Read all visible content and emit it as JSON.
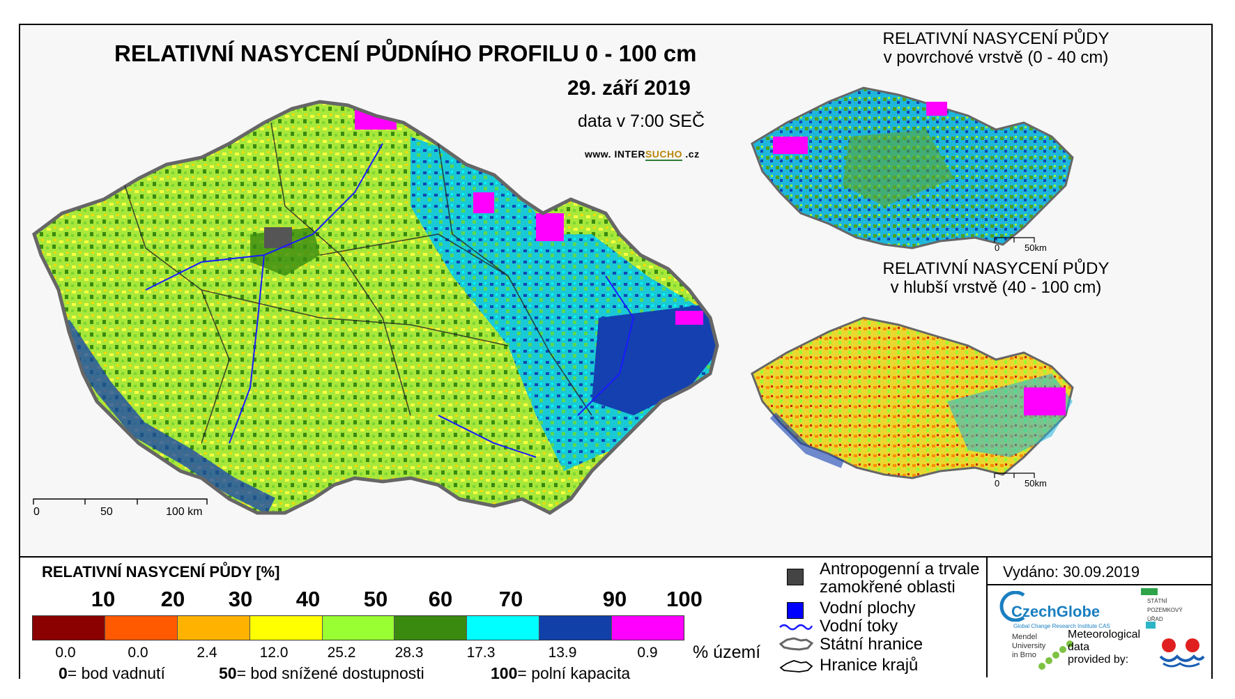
{
  "title": "RELATIVNÍ NASYCENÍ PŮDNÍHO PROFILU 0 - 100 cm",
  "date": "29. září 2019",
  "time_note": "data v 7:00 SEČ",
  "website": {
    "prefix": "www. ",
    "mid1": "INTER",
    "mid2": "SUCHO",
    "suffix": " .cz"
  },
  "inset_top": {
    "line1": "RELATIVNÍ NASYCENÍ PŮDY",
    "line2": "v povrchové vrstvě (0 - 40 cm)",
    "scale0": "0",
    "scale50": "50km"
  },
  "inset_bottom": {
    "line1": "RELATIVNÍ NASYCENÍ PŮDY",
    "line2": "v hlubší vrstvě (40 - 100 cm)",
    "scale0": "0",
    "scale50": "50km"
  },
  "main_scale": {
    "s0": "0",
    "s50": "50",
    "s100": "100 km"
  },
  "legend": {
    "title": "RELATIVNÍ NASYCENÍ PŮDY [%]",
    "ticks": [
      "10",
      "20",
      "30",
      "40",
      "50",
      "60",
      "70",
      "90",
      "100"
    ],
    "classes": [
      {
        "color": "#8b0000",
        "percent": "0.0"
      },
      {
        "color": "#ff5a00",
        "percent": "0.0"
      },
      {
        "color": "#ffb300",
        "percent": "2.4"
      },
      {
        "color": "#ffff00",
        "percent": "12.0"
      },
      {
        "color": "#99ff33",
        "percent": "25.2"
      },
      {
        "color": "#3a8a10",
        "percent": "28.3"
      },
      {
        "color": "#00ffff",
        "percent": "17.3"
      },
      {
        "color": "#1040a8",
        "percent": "13.9"
      },
      {
        "color": "#ff00ff",
        "percent": "0.9"
      }
    ],
    "unit": "% území",
    "note0_num": "0",
    "note0_text": "= bod vadnutí",
    "note50_num": "50",
    "note50_text": "= bod snížené dostupnosti",
    "note100_num": "100",
    "note100_text": "= polní kapacita"
  },
  "symbols": {
    "wetland_line1": "Antropogenní a trvale",
    "wetland_line2": "zamokřené oblasti",
    "water_bodies": "Vodní plochy",
    "rivers": "Vodní toky",
    "state_border": "Státní hranice",
    "region_border": "Hranice krajů"
  },
  "issued": "Vydáno: 30.09.2019",
  "logos": {
    "czechglobe": "CzechGlobe",
    "czechglobe_sub": "Global Change Research Institute CAS",
    "mendel": "Mendel\nUniversity\nin Brno",
    "spu": "STÁTNÍ\nPOZEMKOVÝ\nÚŘAD",
    "meteo": "Meteorological\ndata\nprovided by:"
  },
  "colors": {
    "frame": "#000000",
    "river": "#1a1aff",
    "wetland": "#444444",
    "water": "#0000ff"
  }
}
